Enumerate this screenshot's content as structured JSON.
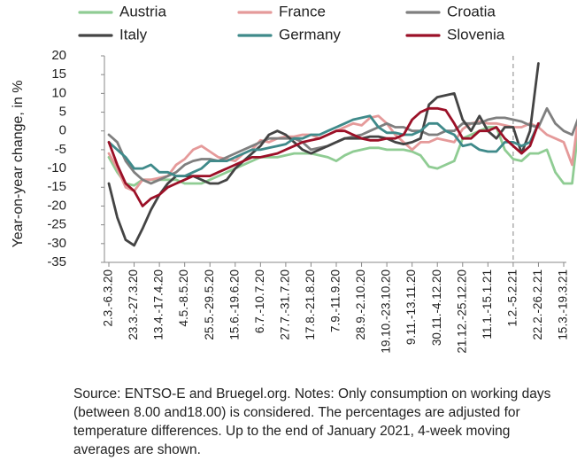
{
  "chart_data": {
    "type": "line",
    "ylabel": "Year-on-year change, in %",
    "ylim": [
      -35,
      20
    ],
    "y_ticks": [
      20,
      15,
      10,
      5,
      0,
      -5,
      -10,
      -15,
      -20,
      -25,
      -30,
      -35
    ],
    "x_tick_labels": [
      "2.3.-6.3.20",
      "23.3.-27.3.20",
      "13.4.-17.4.20",
      "4.5.-8.5.20",
      "25.5.-29.5.20",
      "15.6.-19.6.20",
      "6.7.-10.7.20",
      "27.7.-31.7.20",
      "17.8.-21.8.20",
      "7.9.-11.9.20",
      "28.9.-2.10.20",
      "19.10.-23.10.20",
      "9.11.-13.11.20",
      "30.11.-4.12.20",
      "21.12.-25.12.20",
      "11.1.-15.1.21",
      "1.2.-5.2.21",
      "22.2.-26.2.21",
      "15.3.-19.3.21"
    ],
    "x_tick_week_index": [
      0,
      3,
      6,
      9,
      12,
      15,
      18,
      21,
      24,
      27,
      30,
      33,
      36,
      39,
      42,
      45,
      48,
      51,
      54
    ],
    "reference_line_label": "1.2.-5.2.21",
    "legend_position": "top",
    "series": [
      {
        "name": "Austria",
        "color": "#8fcc93",
        "values": [
          -7,
          -11,
          -14,
          -14.5,
          -13,
          -13,
          -13,
          -13,
          -13,
          -14,
          -14,
          -14,
          -13,
          -12,
          -11,
          -10,
          -9,
          -8,
          -7,
          -7,
          -7,
          -6.5,
          -6,
          -6,
          -6,
          -6.5,
          -7,
          -8,
          -6.5,
          -5.5,
          -5,
          -4.5,
          -4.5,
          -5,
          -5,
          -5,
          -5.5,
          -6.5,
          -9.5,
          -10,
          -9,
          -8,
          -2,
          -1,
          0,
          1,
          1,
          -5,
          -7.5,
          -8,
          -6,
          -6,
          -5,
          -11,
          -14,
          -14,
          6
        ]
      },
      {
        "name": "France",
        "color": "#e59a9a",
        "values": [
          -6,
          -10,
          -15,
          -16,
          -13,
          -13,
          -12.5,
          -12,
          -9,
          -7.5,
          -5,
          -4,
          -5.5,
          -7,
          -7.5,
          -8,
          -6,
          -5,
          -2.5,
          -3,
          -2,
          -1.5,
          -1.5,
          -1,
          -1,
          -2,
          -1,
          0,
          1,
          2,
          1.5,
          3.5,
          4,
          2,
          -1,
          -3,
          -5,
          -3,
          -3,
          -2,
          -2.5,
          -3,
          0.5,
          2,
          2.5,
          2,
          2,
          1.5,
          1,
          1,
          2,
          1,
          -1,
          -2,
          -3,
          -9,
          8
        ]
      },
      {
        "name": "Croatia",
        "color": "#7f7f7f",
        "values": [
          -1,
          -3,
          -8,
          -11,
          -13,
          -14,
          -13,
          -12,
          -11,
          -9,
          -8,
          -7.5,
          -7.5,
          -8,
          -7,
          -6,
          -5,
          -4,
          -3,
          -2,
          -2,
          -2,
          -2,
          -3,
          -5,
          -4.5,
          -4,
          -3,
          -2,
          -1.5,
          -1,
          0,
          1,
          2,
          1,
          1,
          0,
          0,
          -1,
          -1,
          0,
          0,
          2,
          2,
          2,
          3,
          3.5,
          3.5,
          3,
          2.5,
          1.5,
          1,
          6,
          2,
          0,
          -1,
          5
        ]
      },
      {
        "name": "Italy",
        "color": "#444444",
        "values": [
          -14,
          -23,
          -29,
          -30.5,
          -26,
          -21,
          -17,
          -14,
          -12,
          -12,
          -12,
          -13,
          -14,
          -14,
          -13,
          -10,
          -8,
          -6,
          -4,
          -1,
          0,
          -1,
          -3,
          -5,
          -6,
          -5,
          -4,
          -3,
          -2,
          -2,
          -2,
          -1.5,
          -1.5,
          -2,
          -3,
          -3.5,
          -3,
          -2,
          7,
          9,
          9.5,
          10,
          3,
          0,
          4,
          0,
          -2,
          1,
          1,
          -6,
          0,
          18
        ]
      },
      {
        "name": "Germany",
        "color": "#3f8a8a",
        "values": [
          -3,
          -5,
          -7,
          -10,
          -10,
          -9,
          -11,
          -11,
          -12,
          -12,
          -11,
          -10,
          -8,
          -8,
          -8,
          -7,
          -6,
          -5,
          -5,
          -4.5,
          -4,
          -3.5,
          -2,
          -2,
          -1,
          -1,
          0,
          1,
          2,
          3,
          3.5,
          4,
          1,
          -0.5,
          -0.5,
          -1,
          -1,
          0,
          2,
          2,
          0,
          -1,
          -4,
          -3.5,
          -5,
          -5.5,
          -5.5,
          -3,
          -3,
          -4,
          -3,
          2
        ]
      },
      {
        "name": "Slovenia",
        "color": "#9b1027",
        "values": [
          -3,
          -9,
          -14,
          -16,
          -20,
          -18,
          -17,
          -15,
          -14,
          -13,
          -12,
          -12,
          -12,
          -11,
          -10,
          -9,
          -8,
          -7,
          -7,
          -6.5,
          -6,
          -5,
          -4,
          -3,
          -2.5,
          -2,
          -1,
          0,
          0,
          -1,
          -2,
          -2.5,
          -2.5,
          -2,
          -2,
          -1,
          3,
          5,
          6,
          6,
          5.5,
          2,
          -2,
          -2,
          0,
          0,
          1,
          -2,
          -4,
          -6,
          -4,
          2
        ]
      }
    ]
  },
  "source_note": "Source: ENTSO-E and Bruegel.org. Notes: Only consumption on working days (between 8.00 and18.00) is considered. The percentages are adjusted for temperature differences. Up to the end of January 2021, 4-week moving averages are shown."
}
